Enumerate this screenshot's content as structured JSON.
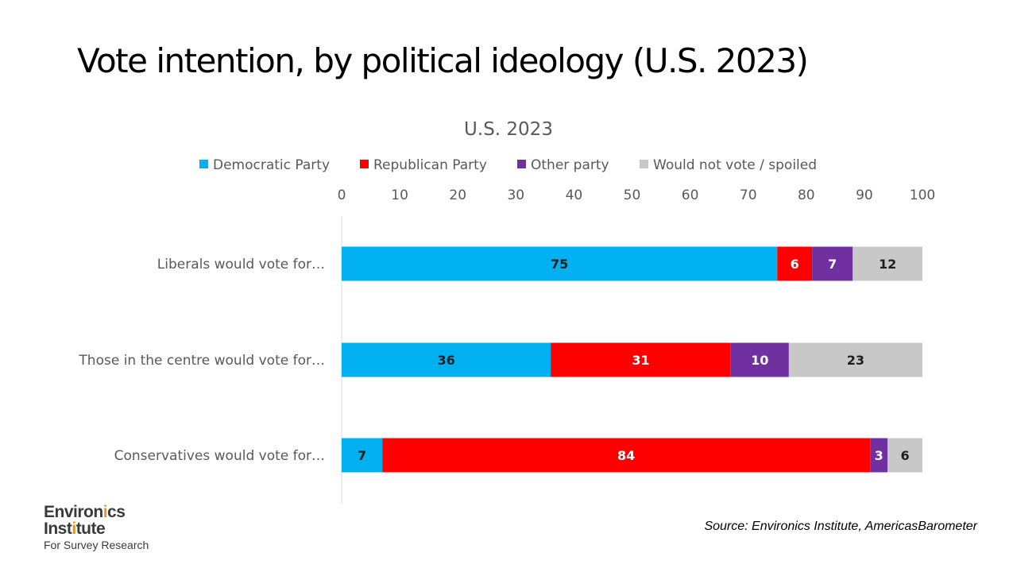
{
  "slide_title": "Vote intention, by political ideology (U.S. 2023)",
  "source": "Source: Environics Institute, AmericasBarometer",
  "logo": {
    "line1_pre": "Environ",
    "line1_accent": "i",
    "line1_post": "cs",
    "line2_pre": "Inst",
    "line2_accent": "i",
    "line2_post": "tute",
    "line3": "For Survey Research",
    "accent_color": "#e8902b"
  },
  "chart_data": {
    "type": "bar",
    "orientation": "horizontal",
    "stacked": true,
    "title": "U.S. 2023",
    "xlim": [
      0,
      100
    ],
    "xticks": [
      0,
      10,
      20,
      30,
      40,
      50,
      60,
      70,
      80,
      90,
      100
    ],
    "x_axis_position": "top",
    "legend_position": "top",
    "grid": false,
    "categories": [
      "Liberals would vote for…",
      "Those in the centre would vote for…",
      "Conservatives would vote for…"
    ],
    "series": [
      {
        "name": "Democratic Party",
        "color": "#00b0f0",
        "values": [
          75,
          36,
          7
        ]
      },
      {
        "name": "Republican Party",
        "color": "#ff0000",
        "values": [
          6,
          31,
          84
        ]
      },
      {
        "name": "Other party",
        "color": "#7030a0",
        "values": [
          7,
          10,
          3
        ]
      },
      {
        "name": "Would not vote / spoiled",
        "color": "#c8c8c8",
        "values": [
          12,
          23,
          6
        ]
      }
    ]
  }
}
